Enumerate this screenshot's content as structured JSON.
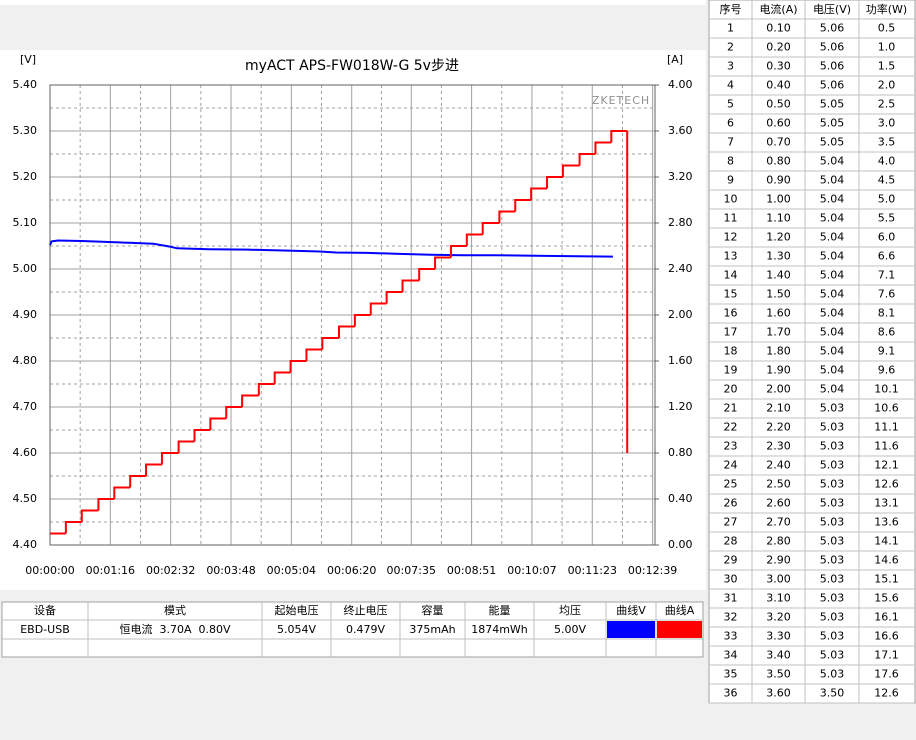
{
  "chart_data": {
    "type": "line",
    "title": "myACT APS-FW018W-G 5v步进",
    "y_label": "[V]",
    "y2_label": "[A]",
    "watermark": "ZKETECH",
    "xlim": [
      0,
      762
    ],
    "xticks": [
      {
        "value": 0,
        "label": "00:00:00"
      },
      {
        "value": 76,
        "label": "00:01:16"
      },
      {
        "value": 152,
        "label": "00:02:32"
      },
      {
        "value": 228,
        "label": "00:03:48"
      },
      {
        "value": 304,
        "label": "00:05:04"
      },
      {
        "value": 380,
        "label": "00:06:20"
      },
      {
        "value": 455,
        "label": "00:07:35"
      },
      {
        "value": 531,
        "label": "00:08:51"
      },
      {
        "value": 607,
        "label": "00:10:07"
      },
      {
        "value": 683,
        "label": "00:11:23"
      },
      {
        "value": 759,
        "label": "00:12:39"
      }
    ],
    "ylim": [
      4.4,
      5.4
    ],
    "yticks": [
      {
        "value": 4.4,
        "label": "4.40"
      },
      {
        "value": 4.5,
        "label": "4.50"
      },
      {
        "value": 4.6,
        "label": "4.60"
      },
      {
        "value": 4.7,
        "label": "4.70"
      },
      {
        "value": 4.8,
        "label": "4.80"
      },
      {
        "value": 4.9,
        "label": "4.90"
      },
      {
        "value": 5.0,
        "label": "5.00"
      },
      {
        "value": 5.1,
        "label": "5.10"
      },
      {
        "value": 5.2,
        "label": "5.20"
      },
      {
        "value": 5.3,
        "label": "5.30"
      },
      {
        "value": 5.4,
        "label": "5.40"
      }
    ],
    "y2lim": [
      0,
      4
    ],
    "y2ticks": [
      {
        "value": 0,
        "label": "0.00"
      },
      {
        "value": 0.4,
        "label": "0.40"
      },
      {
        "value": 0.8,
        "label": "0.80"
      },
      {
        "value": 1.2,
        "label": "1.20"
      },
      {
        "value": 1.6,
        "label": "1.60"
      },
      {
        "value": 2.0,
        "label": "2.00"
      },
      {
        "value": 2.4,
        "label": "2.40"
      },
      {
        "value": 2.8,
        "label": "2.80"
      },
      {
        "value": 3.2,
        "label": "3.20"
      },
      {
        "value": 3.6,
        "label": "3.60"
      },
      {
        "value": 4.0,
        "label": "4.00"
      }
    ],
    "grid": true,
    "series": [
      {
        "color": "#0000ff",
        "axis": "y",
        "x": [
          0,
          2,
          10,
          40,
          70,
          100,
          130,
          150,
          160,
          200,
          250,
          300,
          340,
          360,
          400,
          440,
          480,
          520,
          560,
          600,
          650,
          709
        ],
        "values": [
          5.052,
          5.06,
          5.062,
          5.061,
          5.059,
          5.057,
          5.055,
          5.049,
          5.045,
          5.043,
          5.042,
          5.04,
          5.038,
          5.036,
          5.035,
          5.033,
          5.031,
          5.03,
          5.03,
          5.029,
          5.028,
          5.027
        ]
      },
      {
        "color": "#ff0000",
        "axis": "y2",
        "step": "post",
        "x": [
          0,
          20,
          40,
          61,
          81,
          101,
          121,
          141,
          162,
          182,
          202,
          222,
          242,
          263,
          283,
          303,
          323,
          343,
          364,
          384,
          404,
          424,
          444,
          465,
          485,
          505,
          525,
          545,
          566,
          586,
          606,
          626,
          646,
          667,
          687,
          707,
          727
        ],
        "values": [
          0.1,
          0.2,
          0.3,
          0.4,
          0.5,
          0.6,
          0.7,
          0.8,
          0.9,
          1.0,
          1.1,
          1.2,
          1.3,
          1.4,
          1.5,
          1.6,
          1.7,
          1.8,
          1.9,
          2.0,
          2.1,
          2.2,
          2.3,
          2.4,
          2.5,
          2.6,
          2.7,
          2.8,
          2.9,
          3.0,
          3.1,
          3.2,
          3.3,
          3.4,
          3.5,
          3.6,
          0.8
        ]
      }
    ]
  },
  "summary_table": {
    "headers": [
      "设备",
      "模式",
      "起始电压",
      "终止电压",
      "容量",
      "能量",
      "均压",
      "曲线V",
      "曲线A"
    ],
    "rows": [
      [
        "EBD-USB",
        "恒电流  3.70A  0.80V",
        "5.054V",
        "0.479V",
        "375mAh",
        "1874mWh",
        "5.00V"
      ]
    ]
  },
  "readings_table": {
    "headers": [
      "序号",
      "电流(A)",
      "电压(V)",
      "功率(W)"
    ],
    "rows": [
      [
        "1",
        "0.10",
        "5.06",
        "0.5"
      ],
      [
        "2",
        "0.20",
        "5.06",
        "1.0"
      ],
      [
        "3",
        "0.30",
        "5.06",
        "1.5"
      ],
      [
        "4",
        "0.40",
        "5.06",
        "2.0"
      ],
      [
        "5",
        "0.50",
        "5.05",
        "2.5"
      ],
      [
        "6",
        "0.60",
        "5.05",
        "3.0"
      ],
      [
        "7",
        "0.70",
        "5.05",
        "3.5"
      ],
      [
        "8",
        "0.80",
        "5.04",
        "4.0"
      ],
      [
        "9",
        "0.90",
        "5.04",
        "4.5"
      ],
      [
        "10",
        "1.00",
        "5.04",
        "5.0"
      ],
      [
        "11",
        "1.10",
        "5.04",
        "5.5"
      ],
      [
        "12",
        "1.20",
        "5.04",
        "6.0"
      ],
      [
        "13",
        "1.30",
        "5.04",
        "6.6"
      ],
      [
        "14",
        "1.40",
        "5.04",
        "7.1"
      ],
      [
        "15",
        "1.50",
        "5.04",
        "7.6"
      ],
      [
        "16",
        "1.60",
        "5.04",
        "8.1"
      ],
      [
        "17",
        "1.70",
        "5.04",
        "8.6"
      ],
      [
        "18",
        "1.80",
        "5.04",
        "9.1"
      ],
      [
        "19",
        "1.90",
        "5.04",
        "9.6"
      ],
      [
        "20",
        "2.00",
        "5.04",
        "10.1"
      ],
      [
        "21",
        "2.10",
        "5.03",
        "10.6"
      ],
      [
        "22",
        "2.20",
        "5.03",
        "11.1"
      ],
      [
        "23",
        "2.30",
        "5.03",
        "11.6"
      ],
      [
        "24",
        "2.40",
        "5.03",
        "12.1"
      ],
      [
        "25",
        "2.50",
        "5.03",
        "12.6"
      ],
      [
        "26",
        "2.60",
        "5.03",
        "13.1"
      ],
      [
        "27",
        "2.70",
        "5.03",
        "13.6"
      ],
      [
        "28",
        "2.80",
        "5.03",
        "14.1"
      ],
      [
        "29",
        "2.90",
        "5.03",
        "14.6"
      ],
      [
        "30",
        "3.00",
        "5.03",
        "15.1"
      ],
      [
        "31",
        "3.10",
        "5.03",
        "15.6"
      ],
      [
        "32",
        "3.20",
        "5.03",
        "16.1"
      ],
      [
        "33",
        "3.30",
        "5.03",
        "16.6"
      ],
      [
        "34",
        "3.40",
        "5.03",
        "17.1"
      ],
      [
        "35",
        "3.50",
        "5.03",
        "17.6"
      ],
      [
        "36",
        "3.60",
        "3.50",
        "12.6"
      ]
    ]
  }
}
